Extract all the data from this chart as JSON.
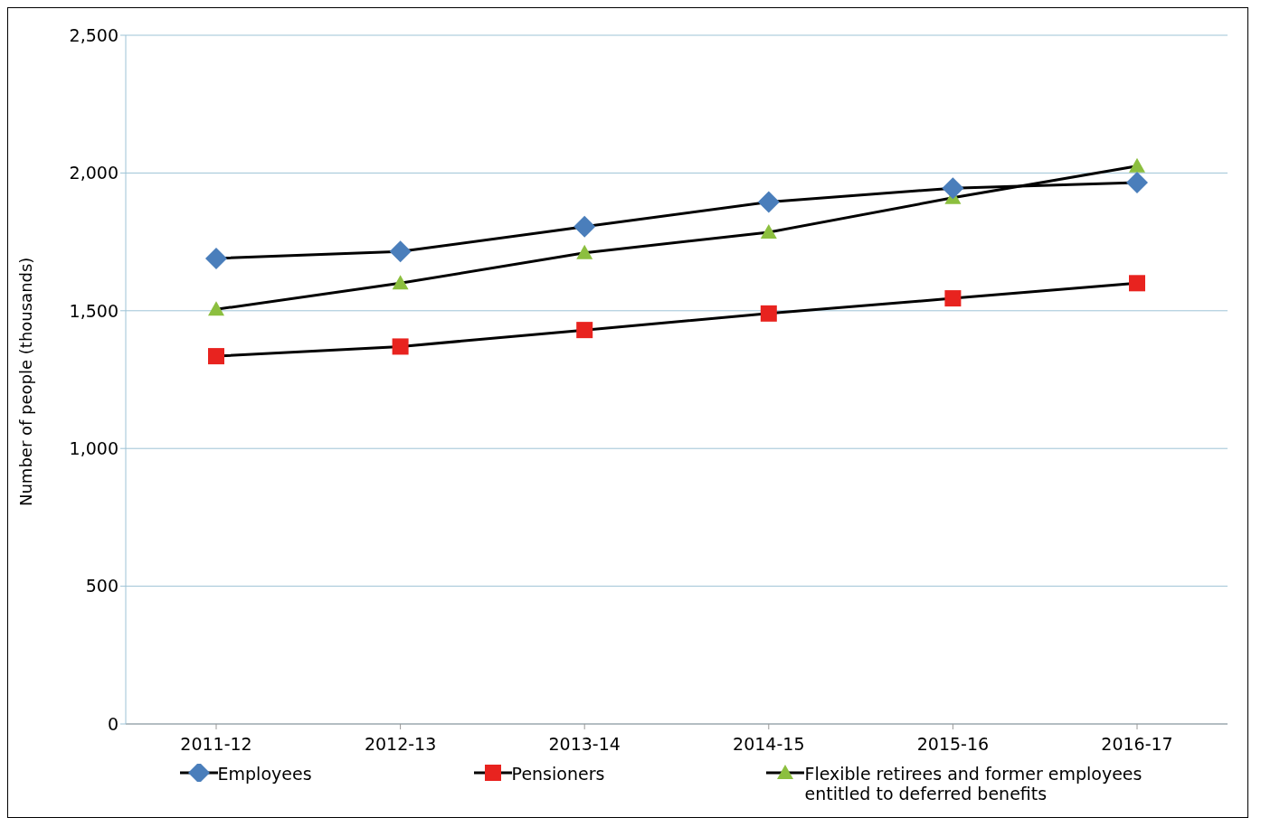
{
  "chart_data": {
    "type": "line",
    "ylabel": "Number of people (thousands)",
    "categories": [
      "2011-12",
      "2012-13",
      "2013-14",
      "2014-15",
      "2015-16",
      "2016-17"
    ],
    "series": [
      {
        "name": "Employees",
        "color": "#4a7ebb",
        "marker": "diamond",
        "values": [
          1690,
          1715,
          1805,
          1895,
          1945,
          1965
        ]
      },
      {
        "name": "Pensioners",
        "color": "#e8231f",
        "marker": "square",
        "values": [
          1335,
          1370,
          1430,
          1490,
          1545,
          1600
        ]
      },
      {
        "name": "Flexible retirees and former employees entitled to deferred benefits",
        "color": "#8cbf3f",
        "marker": "triangle",
        "values": [
          1505,
          1600,
          1710,
          1785,
          1910,
          2025
        ]
      }
    ],
    "ylim": [
      0,
      2500
    ],
    "yticks": [
      {
        "value": 0,
        "label": "0"
      },
      {
        "value": 500,
        "label": "500"
      },
      {
        "value": 1000,
        "label": "1,000"
      },
      {
        "value": 1500,
        "label": "1,500"
      },
      {
        "value": 2000,
        "label": "2,000"
      },
      {
        "value": 2500,
        "label": "2,500"
      }
    ],
    "grid": "y",
    "legend": "bottom"
  }
}
